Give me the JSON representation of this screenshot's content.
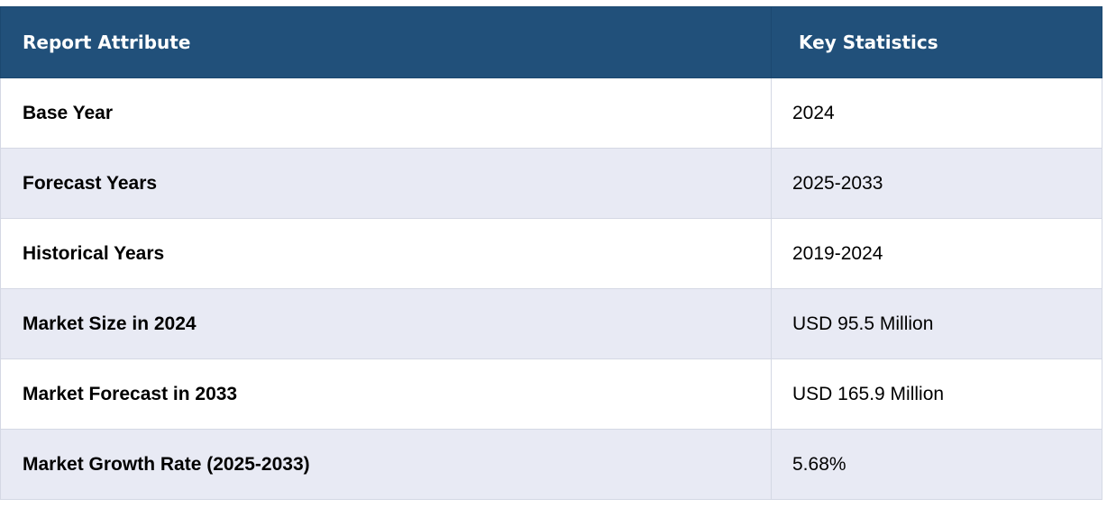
{
  "table": {
    "headers": {
      "attribute": "Report Attribute",
      "statistics": "Key Statistics"
    },
    "rows": [
      {
        "attribute": "Base Year",
        "value": "2024"
      },
      {
        "attribute": "Forecast Years",
        "value": "2025-2033"
      },
      {
        "attribute": "Historical Years",
        "value": "2019-2024"
      },
      {
        "attribute": "Market Size in 2024",
        "value": "USD 95.5 Million"
      },
      {
        "attribute": "Market Forecast in 2033",
        "value": "USD 165.9 Million"
      },
      {
        "attribute": "Market Growth Rate (2025-2033)",
        "value": "5.68%"
      }
    ]
  },
  "colors": {
    "header_bg": "#21507a",
    "header_text": "#ffffff",
    "row_alt_bg": "#e8eaf4",
    "row_bg": "#ffffff"
  }
}
